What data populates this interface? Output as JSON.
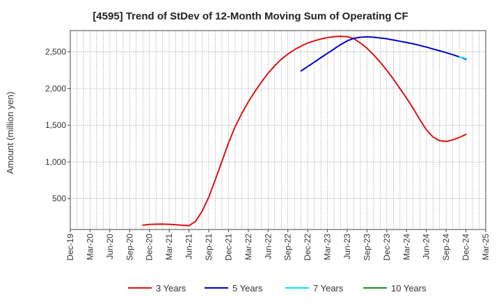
{
  "chart_data": {
    "type": "line",
    "title": "[4595]  Trend of StDev of 12-Month Moving Sum of Operating CF",
    "xlabel": "",
    "ylabel": "Amount (million yen)",
    "x_ticks": [
      "Dec-19",
      "Mar-20",
      "Jun-20",
      "Sep-20",
      "Dec-20",
      "Mar-21",
      "Jun-21",
      "Sep-21",
      "Dec-21",
      "Mar-22",
      "Jun-22",
      "Sep-22",
      "Dec-22",
      "Mar-23",
      "Jun-23",
      "Sep-23",
      "Dec-23",
      "Mar-24",
      "Jun-24",
      "Sep-24",
      "Dec-24",
      "Mar-25"
    ],
    "xlim": [
      "Dec-19",
      "Mar-25"
    ],
    "y_ticks": [
      500,
      1000,
      1500,
      2000,
      2500
    ],
    "y_tick_labels": [
      "500",
      "1,000",
      "1,500",
      "2,000",
      "2,500"
    ],
    "ylim": [
      80,
      2790
    ],
    "grid": true,
    "legend_position": "bottom",
    "series": [
      {
        "name": "3 Years",
        "color": "#dd1111",
        "points": [
          [
            "Nov-20",
            140
          ],
          [
            "Dec-20",
            148
          ],
          [
            "Jan-21",
            152
          ],
          [
            "Feb-21",
            153
          ],
          [
            "Mar-21",
            150
          ],
          [
            "Apr-21",
            145
          ],
          [
            "May-21",
            138
          ],
          [
            "Jun-21",
            132
          ],
          [
            "Jul-21",
            190
          ],
          [
            "Aug-21",
            330
          ],
          [
            "Sep-21",
            520
          ],
          [
            "Oct-21",
            760
          ],
          [
            "Nov-21",
            1010
          ],
          [
            "Dec-21",
            1260
          ],
          [
            "Jan-22",
            1480
          ],
          [
            "Feb-22",
            1660
          ],
          [
            "Mar-22",
            1820
          ],
          [
            "Apr-22",
            1960
          ],
          [
            "May-22",
            2090
          ],
          [
            "Jun-22",
            2210
          ],
          [
            "Jul-22",
            2310
          ],
          [
            "Aug-22",
            2400
          ],
          [
            "Sep-22",
            2470
          ],
          [
            "Oct-22",
            2530
          ],
          [
            "Nov-22",
            2580
          ],
          [
            "Dec-22",
            2620
          ],
          [
            "Jan-23",
            2650
          ],
          [
            "Feb-23",
            2675
          ],
          [
            "Mar-23",
            2695
          ],
          [
            "Apr-23",
            2708
          ],
          [
            "May-23",
            2712
          ],
          [
            "Jun-23",
            2708
          ],
          [
            "Jul-23",
            2680
          ],
          [
            "Aug-23",
            2620
          ],
          [
            "Sep-23",
            2550
          ],
          [
            "Oct-23",
            2460
          ],
          [
            "Nov-23",
            2360
          ],
          [
            "Dec-23",
            2250
          ],
          [
            "Jan-24",
            2130
          ],
          [
            "Feb-24",
            2000
          ],
          [
            "Mar-24",
            1870
          ],
          [
            "Apr-24",
            1730
          ],
          [
            "May-24",
            1580
          ],
          [
            "Jun-24",
            1440
          ],
          [
            "Jul-24",
            1340
          ],
          [
            "Aug-24",
            1290
          ],
          [
            "Sep-24",
            1280
          ],
          [
            "Oct-24",
            1300
          ],
          [
            "Nov-24",
            1335
          ],
          [
            "Dec-24",
            1375
          ]
        ]
      },
      {
        "name": "5 Years",
        "color": "#0000cc",
        "points": [
          [
            "Nov-22",
            2240
          ],
          [
            "Dec-22",
            2300
          ],
          [
            "Jan-23",
            2360
          ],
          [
            "Feb-23",
            2420
          ],
          [
            "Mar-23",
            2480
          ],
          [
            "Apr-23",
            2540
          ],
          [
            "May-23",
            2600
          ],
          [
            "Jun-23",
            2650
          ],
          [
            "Jul-23",
            2685
          ],
          [
            "Aug-23",
            2700
          ],
          [
            "Sep-23",
            2705
          ],
          [
            "Oct-23",
            2700
          ],
          [
            "Nov-23",
            2690
          ],
          [
            "Dec-23",
            2678
          ],
          [
            "Jan-24",
            2662
          ],
          [
            "Feb-24",
            2645
          ],
          [
            "Mar-24",
            2628
          ],
          [
            "Apr-24",
            2610
          ],
          [
            "May-24",
            2588
          ],
          [
            "Jun-24",
            2565
          ],
          [
            "Jul-24",
            2540
          ],
          [
            "Aug-24",
            2515
          ],
          [
            "Sep-24",
            2490
          ],
          [
            "Oct-24",
            2462
          ],
          [
            "Nov-24",
            2432
          ],
          [
            "Dec-24",
            2400
          ]
        ]
      },
      {
        "name": "7 Years",
        "color": "#00e5ee",
        "points": [
          [
            "Nov-24",
            2430
          ],
          [
            "Dec-24",
            2410
          ]
        ]
      },
      {
        "name": "10 Years",
        "color": "#228B22",
        "points": []
      }
    ]
  }
}
